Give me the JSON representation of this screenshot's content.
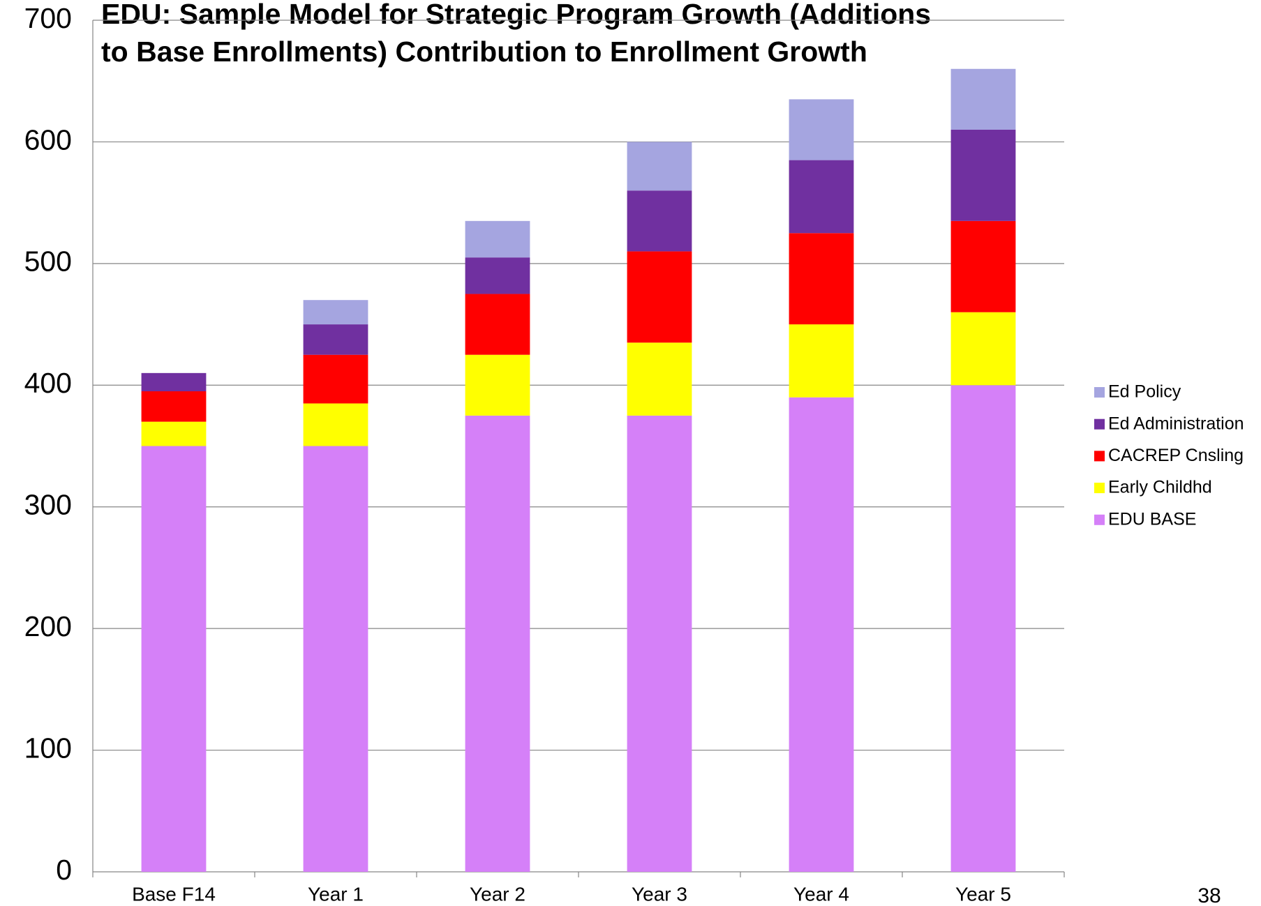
{
  "chart_data": {
    "type": "stacked_bar",
    "title": [
      "EDU:  Sample Model for Strategic Program Growth (Additions",
      "to Base Enrollments) Contribution to Enrollment Growth"
    ],
    "categories": [
      "Base F14",
      "Year 1",
      "Year 2",
      "Year 3",
      "Year 4",
      "Year 5"
    ],
    "series": [
      {
        "name": "EDU BASE",
        "color": "#d580f8",
        "values": [
          350,
          350,
          375,
          375,
          390,
          400
        ]
      },
      {
        "name": "Early Childhd",
        "color": "#ffff00",
        "values": [
          20,
          35,
          50,
          60,
          60,
          60
        ]
      },
      {
        "name": "CACREP Cnsling",
        "color": "#ff0000",
        "values": [
          25,
          40,
          50,
          75,
          75,
          75
        ]
      },
      {
        "name": "Ed Administration",
        "color": "#7030a0",
        "values": [
          15,
          25,
          30,
          50,
          60,
          75
        ]
      },
      {
        "name": "Ed Policy",
        "color": "#a5a5e0",
        "values": [
          0,
          20,
          30,
          40,
          50,
          50
        ]
      }
    ],
    "ylim": [
      0,
      700
    ],
    "yticks": [
      0,
      100,
      200,
      300,
      400,
      500,
      600,
      700
    ],
    "grid": true,
    "legend": "right"
  },
  "page_number": "38"
}
